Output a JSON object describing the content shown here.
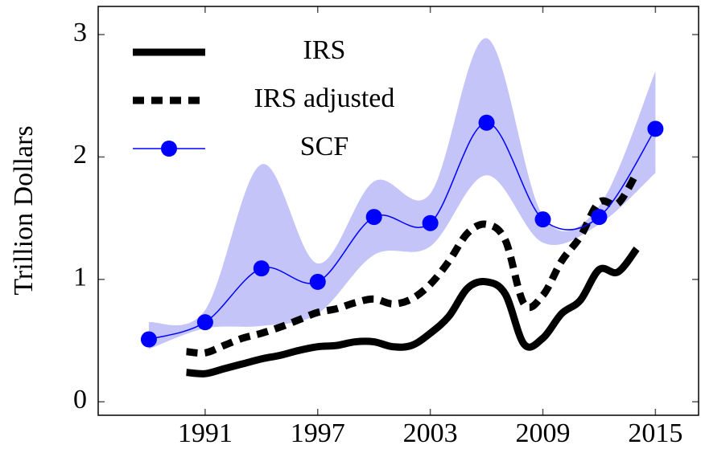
{
  "chart_data": {
    "type": "line",
    "y_label": "Trillion Dollars",
    "xlim": [
      1985.3,
      2017.3
    ],
    "ylim": [
      -0.11,
      3.23
    ],
    "xticks": [
      1991,
      1997,
      2003,
      2009,
      2015
    ],
    "yticks": [
      0,
      1,
      2,
      3
    ],
    "legend": "upper left",
    "band": {
      "color": "#c4c4f8",
      "x": [
        1988,
        1991,
        1994,
        1997,
        2000,
        2003,
        2006,
        2009,
        2012,
        2015
      ],
      "lower": [
        0.43,
        0.6,
        0.62,
        0.72,
        1.2,
        1.27,
        1.85,
        1.3,
        1.45,
        1.87
      ],
      "upper": [
        0.65,
        0.75,
        1.94,
        1.13,
        1.8,
        1.7,
        2.97,
        1.52,
        1.6,
        2.7
      ]
    },
    "series": [
      {
        "name": "IRS",
        "color": "#000000",
        "style": "solid",
        "x": [
          1990,
          1991,
          1992,
          1993,
          1994,
          1995,
          1996,
          1997,
          1998,
          1999,
          2000,
          2001,
          2002,
          2003,
          2004,
          2005,
          2006,
          2007,
          2008,
          2009,
          2010,
          2011,
          2012,
          2013,
          2014
        ],
        "values": [
          0.24,
          0.23,
          0.27,
          0.31,
          0.35,
          0.38,
          0.42,
          0.45,
          0.46,
          0.49,
          0.49,
          0.45,
          0.46,
          0.56,
          0.7,
          0.93,
          0.98,
          0.88,
          0.47,
          0.52,
          0.72,
          0.83,
          1.08,
          1.06,
          1.25
        ]
      },
      {
        "name": "IRS adjusted",
        "color": "#000000",
        "style": "dashed",
        "x": [
          1990,
          1991,
          1992,
          1993,
          1994,
          1995,
          1996,
          1997,
          1998,
          1999,
          2000,
          2001,
          2002,
          2003,
          2004,
          2005,
          2006,
          2007,
          2008,
          2009,
          2010,
          2011,
          2012,
          2013,
          2014
        ],
        "values": [
          0.41,
          0.4,
          0.46,
          0.52,
          0.56,
          0.61,
          0.67,
          0.73,
          0.76,
          0.81,
          0.84,
          0.8,
          0.84,
          0.96,
          1.15,
          1.38,
          1.45,
          1.32,
          0.8,
          0.87,
          1.15,
          1.35,
          1.63,
          1.62,
          1.87
        ]
      },
      {
        "name": "SCF",
        "color": "#0000ff",
        "style": "marker",
        "x": [
          1988,
          1991,
          1994,
          1997,
          2000,
          2003,
          2006,
          2009,
          2012,
          2015
        ],
        "values": [
          0.51,
          0.65,
          1.09,
          0.98,
          1.51,
          1.46,
          2.28,
          1.49,
          1.51,
          2.23
        ]
      }
    ]
  }
}
